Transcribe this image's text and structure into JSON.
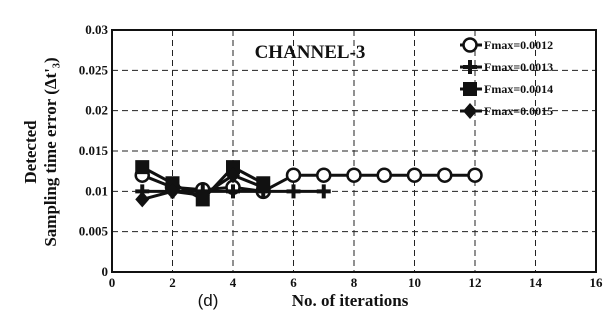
{
  "chart_data": {
    "type": "line",
    "title": "CHANNEL-3",
    "panel_label": "(d)",
    "xlabel": "No. of iterations",
    "ylabel_line1": "Detected",
    "ylabel_line2": "Sampling time error (Δt'₃)",
    "xlim": [
      0,
      16
    ],
    "ylim": [
      0,
      0.03
    ],
    "x_ticks": [
      0,
      2,
      4,
      6,
      8,
      10,
      12,
      14,
      16
    ],
    "y_ticks": [
      0,
      0.005,
      0.01,
      0.015,
      0.02,
      0.025,
      0.03
    ],
    "x_tick_labels": [
      "0",
      "2",
      "4",
      "6",
      "8",
      "10",
      "12",
      "14",
      "16"
    ],
    "y_tick_labels": [
      "0",
      "0.005",
      "0.01",
      "0.015",
      "0.02",
      "0.025",
      "0.03"
    ],
    "grid": true,
    "legend_position": "top-right",
    "series": [
      {
        "name": "Fmax=0.0012",
        "marker": "circle",
        "x": [
          1,
          2,
          3,
          4,
          5,
          6,
          7,
          8,
          9,
          10,
          11,
          12
        ],
        "y": [
          0.012,
          0.0105,
          0.0102,
          0.0105,
          0.01,
          0.012,
          0.012,
          0.012,
          0.012,
          0.012,
          0.012,
          0.012
        ]
      },
      {
        "name": "Fmax=0.0013",
        "marker": "plus",
        "x": [
          1,
          2,
          3,
          4,
          5,
          6,
          7
        ],
        "y": [
          0.01,
          0.01,
          0.01,
          0.01,
          0.01,
          0.01,
          0.01
        ]
      },
      {
        "name": "Fmax=0.0014",
        "marker": "square",
        "x": [
          1,
          2,
          3,
          4,
          5
        ],
        "y": [
          0.013,
          0.011,
          0.009,
          0.013,
          0.011
        ]
      },
      {
        "name": "Fmax=0.0015",
        "marker": "diamond",
        "x": [
          1,
          2,
          3,
          4,
          5
        ],
        "y": [
          0.009,
          0.01,
          0.0095,
          0.012,
          0.0105
        ]
      }
    ]
  }
}
